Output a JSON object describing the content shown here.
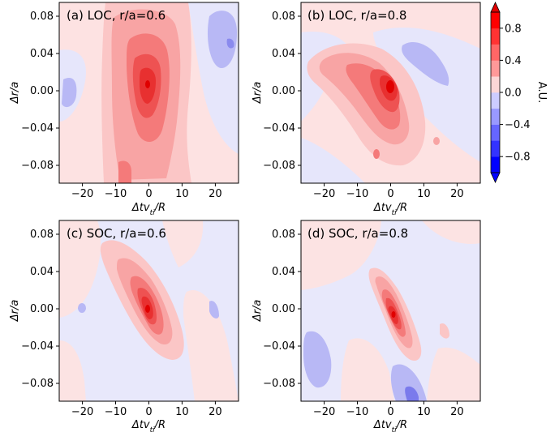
{
  "chart_data": {
    "type": "contour",
    "colorbar": {
      "label": "A.U.",
      "ticks": [
        "0.8",
        "0.4",
        "0.0",
        "−0.4",
        "−0.8"
      ],
      "tick_values": [
        0.8,
        0.4,
        0.0,
        -0.4,
        -0.8
      ],
      "range": [
        -1.0,
        1.0
      ],
      "colormap": "bwr",
      "colors": [
        "#0000ff",
        "#3333ff",
        "#6666ff",
        "#9999ff",
        "#ccccff",
        "#fcd6d6",
        "#ff9999",
        "#ff6666",
        "#ff3333",
        "#ff0000"
      ]
    },
    "panels": [
      {
        "title": "(a) LOC, r/a=0.6",
        "xlabel": "Δtv_ti/R",
        "ylabel": "Δr/a"
      },
      {
        "title": "(b) LOC, r/a=0.8",
        "xlabel": "Δtv_ti/R",
        "ylabel": "Δr/a"
      },
      {
        "title": "(c) SOC, r/a=0.6",
        "xlabel": "Δtv_ti/R",
        "ylabel": "Δr/a"
      },
      {
        "title": "(d) SOC, r/a=0.8",
        "xlabel": "Δtv_ti/R",
        "ylabel": "Δr/a"
      }
    ],
    "xlim": [
      -27,
      27
    ],
    "ylim": [
      -0.1,
      0.095
    ],
    "xticks": [
      "−20",
      "−10",
      "0",
      "10",
      "20"
    ],
    "xtick_values": [
      -20,
      -10,
      0,
      10,
      20
    ],
    "yticks": [
      "0.08",
      "0.04",
      "0.00",
      "−0.04",
      "−0.08"
    ],
    "ytick_values": [
      0.08,
      0.04,
      0.0,
      -0.04,
      -0.08
    ]
  }
}
